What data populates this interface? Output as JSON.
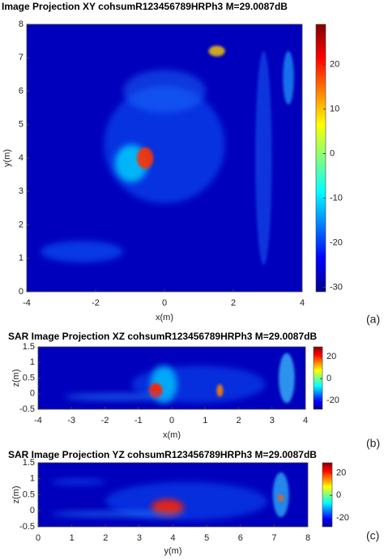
{
  "chart_data": [
    {
      "type": "heatmap",
      "title": "Image Projection XY cohsumR123456789HRPh3 M=29.0087dB",
      "xlabel": "x(m)",
      "ylabel": "y(m)",
      "xlim": [
        -4,
        4
      ],
      "ylim": [
        0,
        8
      ],
      "xticks": [
        -4,
        -2,
        0,
        2,
        4
      ],
      "yticks": [
        0,
        1,
        2,
        3,
        4,
        5,
        6,
        7,
        8
      ],
      "colormap": "jet",
      "clim": [
        -31,
        29
      ],
      "cticks": [
        -30,
        -20,
        -10,
        0,
        10,
        20
      ],
      "panel_label": "(a)"
    },
    {
      "type": "heatmap",
      "title": "SAR Image Projection XZ cohsumR123456789HRPh3 M=29.0087dB",
      "xlabel": "x(m)",
      "ylabel": "z(m)",
      "xlim": [
        -4,
        4
      ],
      "ylim": [
        -0.5,
        1.5
      ],
      "xticks": [
        -4,
        -3,
        -2,
        -1,
        0,
        1,
        2,
        3,
        4
      ],
      "yticks": [
        -0.5,
        0,
        0.5,
        1,
        1.5
      ],
      "colormap": "jet",
      "clim": [
        -28,
        29
      ],
      "cticks": [
        -20,
        0,
        20
      ],
      "panel_label": "(b)"
    },
    {
      "type": "heatmap",
      "title": "SAR Image Projection YZ cohsumR123456789HRPh3 M=29.0087dB",
      "xlabel": "y(m)",
      "ylabel": "z(m)",
      "xlim": [
        0,
        8
      ],
      "ylim": [
        -0.5,
        1.5
      ],
      "xticks": [
        0,
        1,
        2,
        3,
        4,
        5,
        6,
        7,
        8
      ],
      "yticks": [
        -0.5,
        0,
        0.5,
        1,
        1.5
      ],
      "colormap": "jet",
      "clim": [
        -28,
        29
      ],
      "cticks": [
        -20,
        0,
        20
      ],
      "panel_label": "(c)"
    }
  ]
}
